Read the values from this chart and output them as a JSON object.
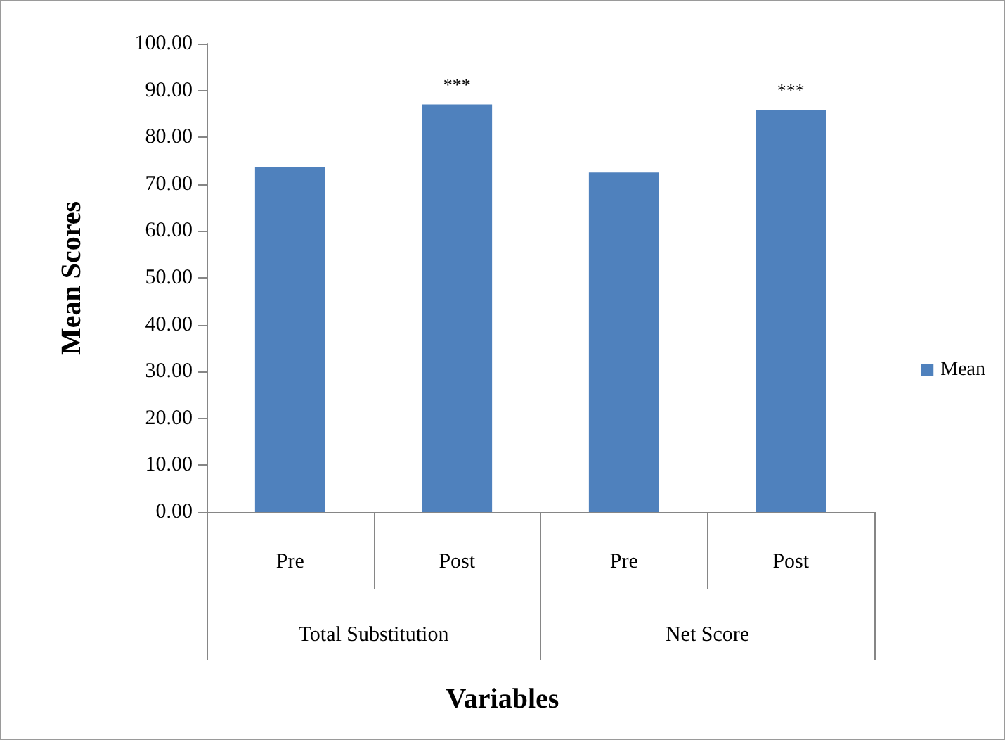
{
  "chart_data": {
    "type": "bar",
    "xlabel": "Variables",
    "ylabel": "Mean Scores",
    "categories": [
      "Pre",
      "Post",
      "Pre",
      "Post"
    ],
    "series": [
      {
        "name": "Mean",
        "color": "#4f81bd",
        "values": [
          73.7,
          87.0,
          72.5,
          85.8
        ],
        "value_labels": [
          null,
          "***",
          null,
          "***"
        ]
      }
    ],
    "annotations": [
      "Total Substitution",
      "Net Score"
    ],
    "ylim": [
      0,
      100
    ],
    "yticks": [
      {
        "value": 0,
        "label": "0.00"
      },
      {
        "value": 10,
        "label": "10.00"
      },
      {
        "value": 20,
        "label": "20.00"
      },
      {
        "value": 30,
        "label": "30.00"
      },
      {
        "value": 40,
        "label": "40.00"
      },
      {
        "value": 50,
        "label": "50.00"
      },
      {
        "value": 60,
        "label": "60.00"
      },
      {
        "value": 70,
        "label": "70.00"
      },
      {
        "value": 80,
        "label": "80.00"
      },
      {
        "value": 90,
        "label": "90.00"
      },
      {
        "value": 100,
        "label": "100.00"
      }
    ],
    "grid": false,
    "legend": "right"
  }
}
